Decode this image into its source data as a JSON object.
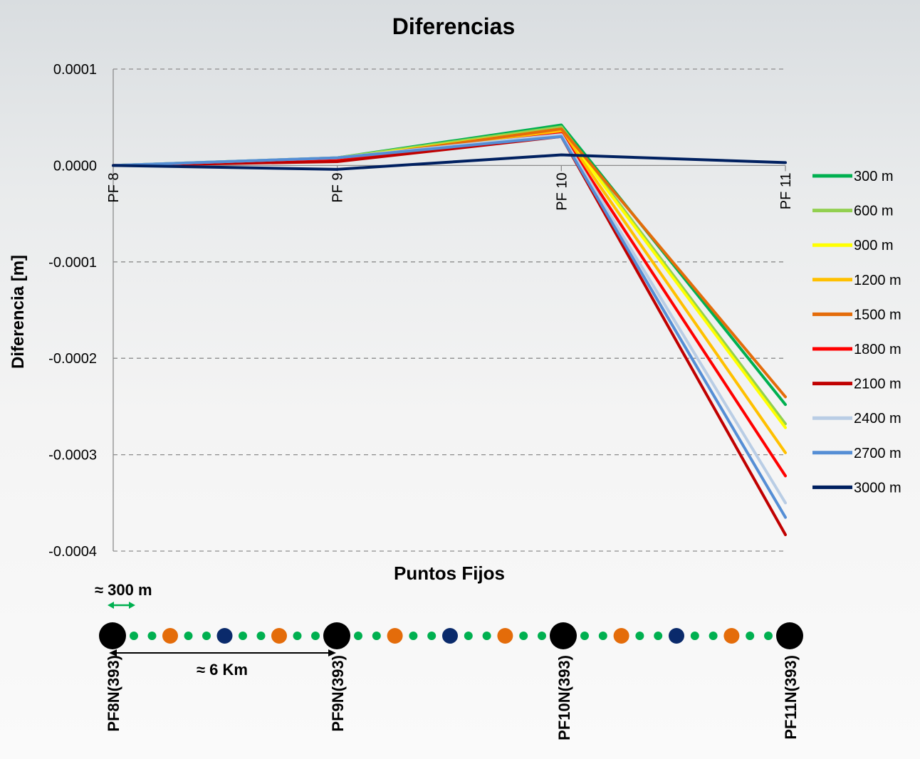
{
  "chart_data": {
    "type": "line",
    "title": "Diferencias",
    "xlabel": "Puntos Fijos",
    "ylabel": "Diferencia [m]",
    "categories": [
      "PF 8",
      "PF 9",
      "PF 10",
      "PF 11"
    ],
    "ylim": [
      -0.0004,
      0.0001
    ],
    "yticks": [
      "0.0001",
      "0.0000",
      "-0.0001",
      "-0.0002",
      "-0.0003",
      "-0.0004"
    ],
    "ytick_values": [
      0.0001,
      0,
      -0.0001,
      -0.0002,
      -0.0003,
      -0.0004
    ],
    "grid": "horizontal dashed",
    "legend_position": "right",
    "series": [
      {
        "name": "300 m",
        "color": "#00b050",
        "values": [
          0,
          8e-06,
          4.2e-05,
          -0.000248
        ]
      },
      {
        "name": "600 m",
        "color": "#92d050",
        "values": [
          0,
          8e-06,
          4e-05,
          -0.000268
        ]
      },
      {
        "name": "900 m",
        "color": "#ffff00",
        "values": [
          0,
          7e-06,
          3.8e-05,
          -0.000272
        ]
      },
      {
        "name": "1200 m",
        "color": "#ffc000",
        "values": [
          0,
          6e-06,
          3.6e-05,
          -0.000298
        ]
      },
      {
        "name": "1500 m",
        "color": "#e46c0a",
        "values": [
          0,
          6e-06,
          3.8e-05,
          -0.00024
        ]
      },
      {
        "name": "1800 m",
        "color": "#ff0000",
        "values": [
          0,
          5e-06,
          3.3e-05,
          -0.000322
        ]
      },
      {
        "name": "2100 m",
        "color": "#c00000",
        "values": [
          0,
          4e-06,
          3e-05,
          -0.000383
        ]
      },
      {
        "name": "2400 m",
        "color": "#b9cde5",
        "values": [
          0,
          8e-06,
          3.2e-05,
          -0.00035
        ]
      },
      {
        "name": "2700 m",
        "color": "#558ed5",
        "values": [
          0,
          8e-06,
          3e-05,
          -0.000365
        ]
      },
      {
        "name": "3000 m",
        "color": "#002060",
        "values": [
          0,
          -4e-06,
          1.1e-05,
          3e-06
        ]
      }
    ]
  },
  "diagram": {
    "spacing_label": "≈ 300 m",
    "distance_label": "≈ 6 Km",
    "benchmarks": [
      "PF8N(393)",
      "PF9N(393)",
      "PF10N(393)",
      "PF11N(393)"
    ],
    "segment_pattern": [
      "green",
      "green",
      "orange",
      "green",
      "green",
      "navy",
      "green",
      "green",
      "orange",
      "green",
      "green"
    ],
    "colors": {
      "green": "#00b050",
      "orange": "#e46c0a",
      "navy": "#0a2a6b",
      "benchmark": "#000000",
      "arrow": "#00b050"
    }
  }
}
